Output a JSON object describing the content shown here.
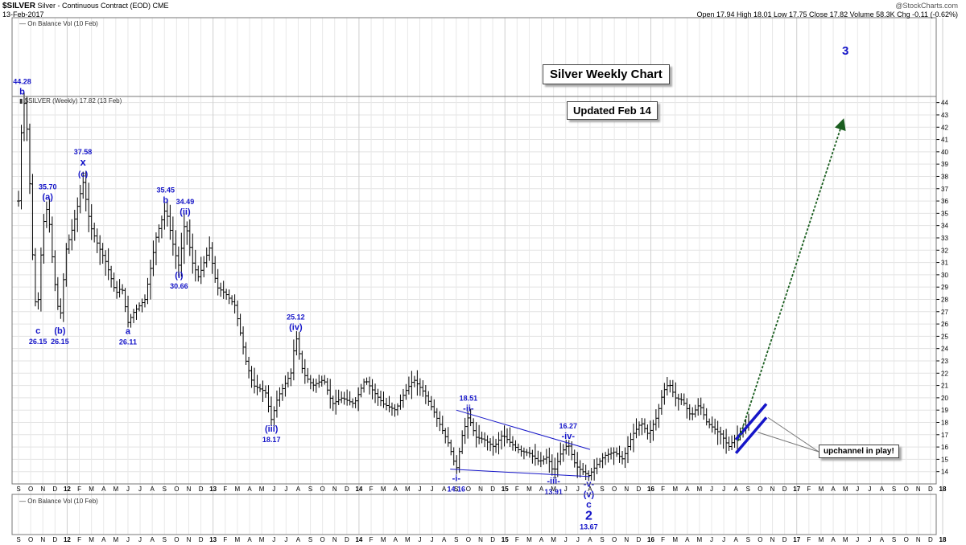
{
  "header": {
    "symbol": "$SILVER",
    "description": "Silver - Continuous Contract (EOD)",
    "exchange": "CME",
    "date": "13-Feb-2017",
    "watermark": "@StockCharts.com",
    "quote": "Open 17.94  High 18.01  Low 17.75  Close 17.82  Volume 58.3K  Chg -0.11 (-0.62%)"
  },
  "indicator_top_label": "On Balance Vol (10 Feb)",
  "indicator_bottom_label": "On Balance Vol (10 Feb)",
  "price_legend": "$SILVER (Weekly) 17.82 (13 Feb)",
  "text_boxes": {
    "title": "Silver Weekly Chart",
    "updated": "Updated Feb 14",
    "callout": "upchannel in play!"
  },
  "chart_data": {
    "type": "ohlc",
    "ylim": [
      13,
      44.5
    ],
    "y_ticks": [
      14,
      15,
      16,
      17,
      18,
      19,
      20,
      21,
      22,
      23,
      24,
      25,
      26,
      27,
      28,
      29,
      30,
      31,
      32,
      33,
      34,
      35,
      36,
      37,
      38,
      39,
      40,
      41,
      42,
      43,
      44
    ],
    "x_month_labels": [
      "S",
      "O",
      "N",
      "D",
      "12",
      "F",
      "M",
      "A",
      "M",
      "J",
      "J",
      "A",
      "S",
      "O",
      "N",
      "D",
      "13",
      "F",
      "M",
      "A",
      "M",
      "J",
      "J",
      "A",
      "S",
      "O",
      "N",
      "D",
      "14",
      "F",
      "M",
      "A",
      "M",
      "J",
      "J",
      "A",
      "S",
      "O",
      "N",
      "D",
      "15",
      "F",
      "M",
      "A",
      "M",
      "J",
      "J",
      "A",
      "S",
      "O",
      "N",
      "D",
      "16",
      "F",
      "M",
      "A",
      "M",
      "J",
      "J",
      "A",
      "S",
      "O",
      "N",
      "D",
      "17",
      "F",
      "M",
      "A",
      "M",
      "J",
      "J",
      "A",
      "S",
      "O",
      "N",
      "D",
      "18"
    ],
    "x_bold_labels": [
      "12",
      "13",
      "14",
      "15",
      "16",
      "17",
      "18"
    ],
    "price_path_months": [
      [
        0,
        36.0
      ],
      [
        0.25,
        42.0
      ],
      [
        0.5,
        44.28
      ],
      [
        0.8,
        40.5
      ],
      [
        1.2,
        30.5
      ],
      [
        1.5,
        26.15
      ],
      [
        2.0,
        34.0
      ],
      [
        2.4,
        35.7
      ],
      [
        2.9,
        30.0
      ],
      [
        3.4,
        26.15
      ],
      [
        3.9,
        32.0
      ],
      [
        4.5,
        34.0
      ],
      [
        5.3,
        37.58
      ],
      [
        5.9,
        34.0
      ],
      [
        6.5,
        32.5
      ],
      [
        7.2,
        31.0
      ],
      [
        8.0,
        28.5
      ],
      [
        8.5,
        29.0
      ],
      [
        9.0,
        26.11
      ],
      [
        9.5,
        27.0
      ],
      [
        10.4,
        28.0
      ],
      [
        11.3,
        33.0
      ],
      [
        12.1,
        35.45
      ],
      [
        12.8,
        32.0
      ],
      [
        13.2,
        30.66
      ],
      [
        13.7,
        34.49
      ],
      [
        14.3,
        31.0
      ],
      [
        14.8,
        29.8
      ],
      [
        15.7,
        32.2
      ],
      [
        16.3,
        29.0
      ],
      [
        17.0,
        28.5
      ],
      [
        17.8,
        27.5
      ],
      [
        18.7,
        23.0
      ],
      [
        19.3,
        21.0
      ],
      [
        20.3,
        20.5
      ],
      [
        20.8,
        18.17
      ],
      [
        21.3,
        20.0
      ],
      [
        22.4,
        22.0
      ],
      [
        22.8,
        25.12
      ],
      [
        23.4,
        22.0
      ],
      [
        24.2,
        21.0
      ],
      [
        25.1,
        21.5
      ],
      [
        25.8,
        19.5
      ],
      [
        26.6,
        20.0
      ],
      [
        27.6,
        19.5
      ],
      [
        28.5,
        21.5
      ],
      [
        29.2,
        20.5
      ],
      [
        30.0,
        19.5
      ],
      [
        31.0,
        19.0
      ],
      [
        31.8,
        20.5
      ],
      [
        32.5,
        21.5
      ],
      [
        33.3,
        20.5
      ],
      [
        34.1,
        19.0
      ],
      [
        34.8,
        17.5
      ],
      [
        35.4,
        16.2
      ],
      [
        36.0,
        14.16
      ],
      [
        36.5,
        17.0
      ],
      [
        37.0,
        18.51
      ],
      [
        37.6,
        16.8
      ],
      [
        38.3,
        16.6
      ],
      [
        39.1,
        16.0
      ],
      [
        39.8,
        17.0
      ],
      [
        40.5,
        16.3
      ],
      [
        41.2,
        15.7
      ],
      [
        42.0,
        15.5
      ],
      [
        42.8,
        14.8
      ],
      [
        43.5,
        15.2
      ],
      [
        44.0,
        13.91
      ],
      [
        44.6,
        15.5
      ],
      [
        45.2,
        16.27
      ],
      [
        45.8,
        14.5
      ],
      [
        46.4,
        14.0
      ],
      [
        46.9,
        13.67
      ],
      [
        47.5,
        14.5
      ],
      [
        48.2,
        15.3
      ],
      [
        49.0,
        15.6
      ],
      [
        49.7,
        15.0
      ],
      [
        50.5,
        17.0
      ],
      [
        51.2,
        18.0
      ],
      [
        51.8,
        17.0
      ],
      [
        52.5,
        18.5
      ],
      [
        53.0,
        20.5
      ],
      [
        53.5,
        21.2
      ],
      [
        54.0,
        20.0
      ],
      [
        54.6,
        19.8
      ],
      [
        55.3,
        18.5
      ],
      [
        56.0,
        19.5
      ],
      [
        56.6,
        18.0
      ],
      [
        57.2,
        17.5
      ],
      [
        57.8,
        17.0
      ],
      [
        58.4,
        16.0
      ],
      [
        59.0,
        16.8
      ],
      [
        59.5,
        17.4
      ],
      [
        60.0,
        17.82
      ]
    ],
    "wave_labels": [
      {
        "x": 0.3,
        "y": 44.28,
        "price": "44.28",
        "label": "b",
        "pos": "above"
      },
      {
        "x": 1.6,
        "y": 26.15,
        "label": "c",
        "price": "26.15",
        "pos": "below"
      },
      {
        "x": 2.4,
        "y": 35.7,
        "price": "35.70",
        "label": "(a)",
        "pos": "above"
      },
      {
        "x": 3.4,
        "y": 26.15,
        "label": "(b)",
        "price": "26.15",
        "pos": "below"
      },
      {
        "x": 5.3,
        "y": 37.58,
        "price": "37.58",
        "label": "x",
        "label2": "(c)",
        "pos": "above"
      },
      {
        "x": 9.0,
        "y": 26.11,
        "label": "a",
        "price": "26.11",
        "pos": "below"
      },
      {
        "x": 12.1,
        "y": 35.45,
        "price": "35.45",
        "label": "b",
        "pos": "above"
      },
      {
        "x": 13.2,
        "y": 30.66,
        "label": "(i)",
        "price": "30.66",
        "pos": "below"
      },
      {
        "x": 13.7,
        "y": 34.49,
        "price": "34.49",
        "label": "(ii)",
        "pos": "above"
      },
      {
        "x": 20.8,
        "y": 18.17,
        "label": "(iii)",
        "price": "18.17",
        "pos": "below"
      },
      {
        "x": 22.8,
        "y": 25.12,
        "price": "25.12",
        "label": "(iv)",
        "pos": "above"
      },
      {
        "x": 36.0,
        "y": 14.16,
        "label": "-i-",
        "price": "14.16",
        "pos": "below"
      },
      {
        "x": 37.0,
        "y": 18.51,
        "price": "18.51",
        "label": "-ii-",
        "pos": "above"
      },
      {
        "x": 44.0,
        "y": 13.91,
        "label": "-iii-",
        "price": "13.91",
        "pos": "below"
      },
      {
        "x": 45.2,
        "y": 16.27,
        "price": "16.27",
        "label": "-iv-",
        "pos": "above"
      },
      {
        "x": 46.9,
        "y": 13.67,
        "label": "-v-",
        "label2": "(v)",
        "label3": "c",
        "label4": "2",
        "price": "13.67",
        "pos": "below"
      },
      {
        "x": 68.0,
        "y": 47.0,
        "label": "3",
        "pos": "free"
      }
    ],
    "trendlines": [
      {
        "name": "upper-wedge",
        "points": [
          [
            36.0,
            19.0
          ],
          [
            47.0,
            15.8
          ]
        ]
      },
      {
        "name": "lower-wedge",
        "points": [
          [
            35.5,
            14.2
          ],
          [
            47.0,
            13.6
          ]
        ]
      }
    ],
    "channel_lines": [
      {
        "name": "upper-channel",
        "points": [
          [
            59.0,
            16.6
          ],
          [
            61.5,
            19.5
          ]
        ]
      },
      {
        "name": "lower-channel",
        "points": [
          [
            59.0,
            15.5
          ],
          [
            61.5,
            18.4
          ]
        ]
      }
    ],
    "projection_arrow": {
      "from": [
        59.2,
        16.5
      ],
      "to": [
        67.8,
        42.5
      ]
    },
    "ann_color": "#1515c8",
    "bar_color": "#000000",
    "arrow_color": "#1b5e20"
  }
}
